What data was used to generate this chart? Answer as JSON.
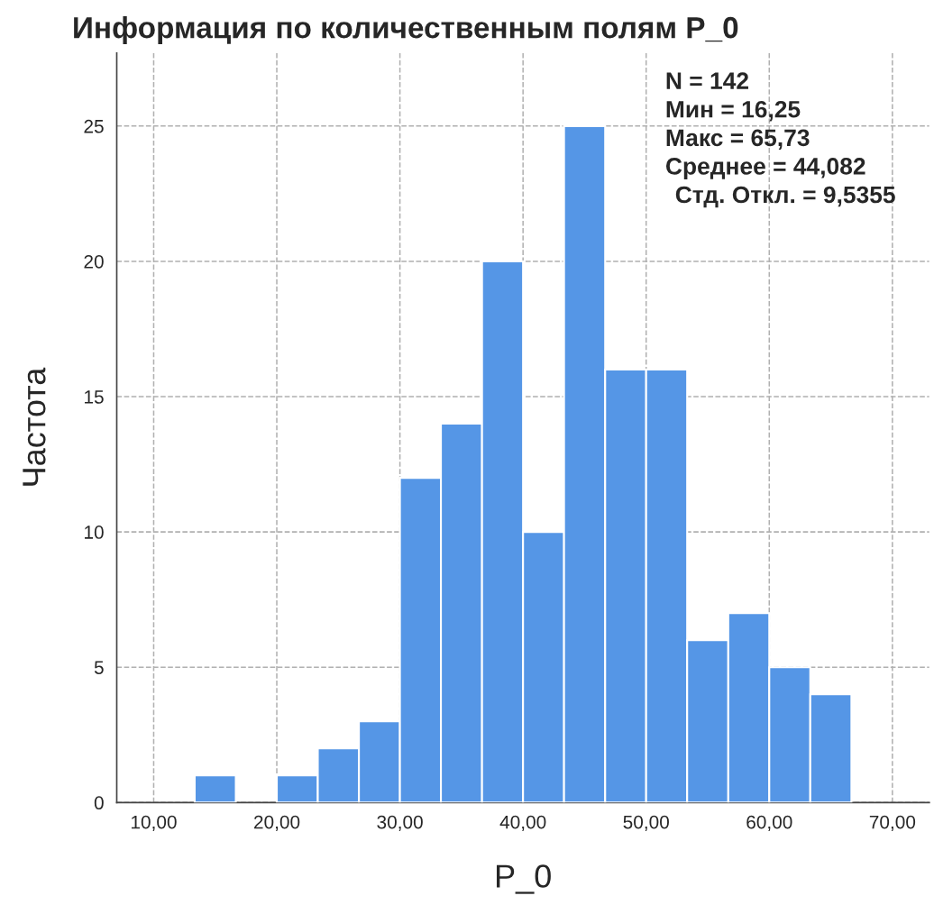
{
  "chart_data": {
    "type": "histogram",
    "title": "Информация по количественным полям P_0",
    "xlabel": "P_0",
    "ylabel": "Частота",
    "bins": [
      13.33,
      16.67,
      20,
      23.33,
      26.67,
      30,
      33.33,
      36.67,
      40,
      43.33,
      46.67,
      50,
      53.33,
      56.67,
      60,
      63.33,
      66.67
    ],
    "values": [
      1,
      0,
      1,
      2,
      3,
      12,
      14,
      20,
      10,
      25,
      16,
      16,
      6,
      7,
      5,
      4
    ],
    "color": "#5596e6",
    "xlim": [
      7,
      73
    ],
    "ylim": [
      0,
      27.7
    ],
    "xticks": [
      {
        "value": 10,
        "label": "10,00"
      },
      {
        "value": 20,
        "label": "20,00"
      },
      {
        "value": 30,
        "label": "30,00"
      },
      {
        "value": 40,
        "label": "40,00"
      },
      {
        "value": 50,
        "label": "50,00"
      },
      {
        "value": 60,
        "label": "60,00"
      },
      {
        "value": 70,
        "label": "70,00"
      }
    ],
    "yticks": [
      0,
      5,
      10,
      15,
      20,
      25
    ],
    "grid": true,
    "line_style": "dashed",
    "annotations": [
      "N = 142",
      "Мин = 16,25",
      "Макс = 65,73",
      "Среднее = 44,082",
      "Стд. Откл. = 9,5355"
    ]
  }
}
